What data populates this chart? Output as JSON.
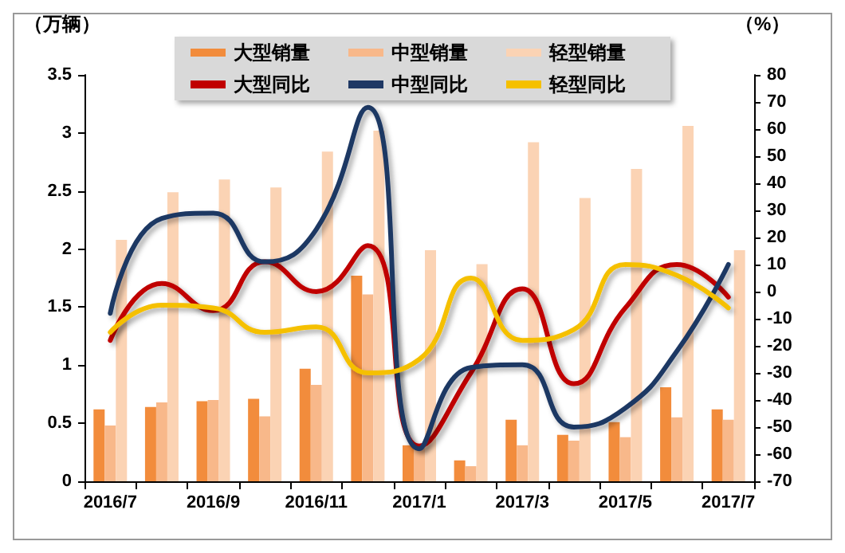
{
  "chart_data": {
    "type": "bar",
    "ylabel": "（万辆）",
    "y2label": "（%）",
    "categories": [
      "2016/7",
      null,
      "2016/9",
      null,
      "2016/11",
      null,
      "2017/1",
      null,
      "2017/3",
      null,
      "2017/5",
      null,
      "2017/7"
    ],
    "series": [
      {
        "name": "大型销量",
        "color": "#f28c3c",
        "values": [
          0.62,
          0.64,
          0.69,
          0.71,
          0.97,
          1.77,
          0.31,
          0.18,
          0.53,
          0.4,
          0.51,
          0.81,
          0.62
        ]
      },
      {
        "name": "中型销量",
        "color": "#f8b88a",
        "values": [
          0.48,
          0.68,
          0.7,
          0.56,
          0.83,
          1.61,
          0.29,
          0.13,
          0.31,
          0.35,
          0.38,
          0.55,
          0.53
        ]
      },
      {
        "name": "轻型销量",
        "color": "#fbd3b4",
        "values": [
          2.08,
          2.49,
          2.6,
          2.53,
          2.84,
          3.02,
          1.99,
          1.87,
          2.92,
          2.44,
          2.69,
          3.06,
          1.99
        ]
      },
      {
        "name": "大型同比",
        "type": "line",
        "axis": "y2",
        "color": "#c00000",
        "values": [
          -18,
          3,
          -7,
          11,
          0,
          17,
          -57,
          -30,
          1,
          -34,
          -6,
          10,
          -2
        ]
      },
      {
        "name": "中型同比",
        "type": "line",
        "axis": "y2",
        "color": "#1f3864",
        "values": [
          -8,
          27,
          29,
          11,
          23,
          68,
          -58,
          -28,
          -27,
          -50,
          -43,
          -22,
          10
        ]
      },
      {
        "name": "轻型同比",
        "type": "line",
        "axis": "y2",
        "color": "#f5c000",
        "values": [
          -15,
          -5,
          -6,
          -15,
          -13,
          -30,
          -25,
          5,
          -18,
          -14,
          10,
          6,
          -6
        ]
      }
    ],
    "ylim": [
      0,
      3.5
    ],
    "yticks": [
      0,
      0.5,
      1,
      1.5,
      2,
      2.5,
      3,
      3.5
    ],
    "y2lim": [
      -70,
      80
    ],
    "y2ticks": [
      -70,
      -60,
      -50,
      -40,
      -30,
      -20,
      -10,
      0,
      10,
      20,
      30,
      40,
      50,
      60,
      70,
      80
    ],
    "legend": "top",
    "grid": false,
    "marker": "none"
  }
}
